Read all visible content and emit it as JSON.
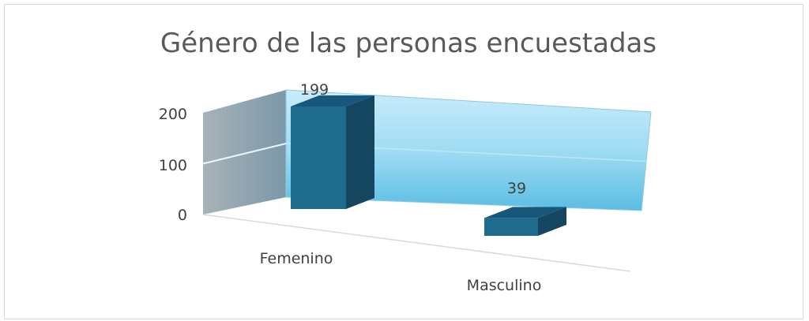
{
  "chart_data": {
    "type": "bar",
    "title": "Género de las personas encuestadas",
    "categories": [
      "Femenino",
      "Masculino"
    ],
    "values": [
      199,
      39
    ],
    "ylim": [
      0,
      200
    ],
    "yticks": [
      "0",
      "100",
      "200"
    ],
    "data_labels": [
      "199",
      "39"
    ],
    "grid": true,
    "legend": "none",
    "colors": {
      "bar_front": "#1f6b8e",
      "bar_side": "#14465f",
      "bar_top": "#17587a",
      "back_wall": "#7fd0ee",
      "side_wall": "#8aa9b8"
    }
  }
}
